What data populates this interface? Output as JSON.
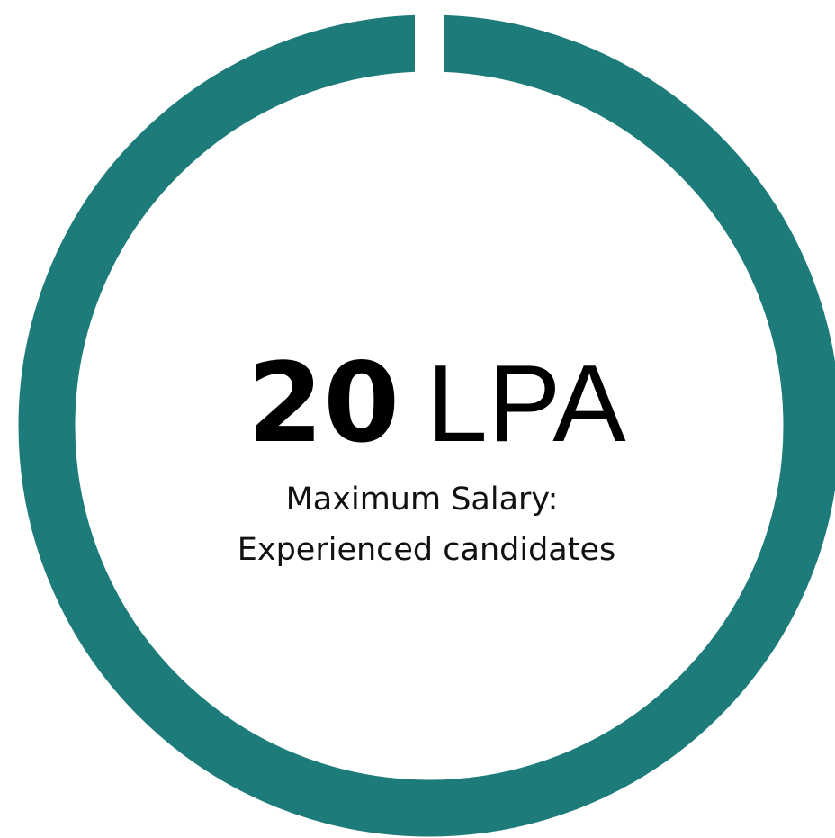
{
  "headline": {
    "number": "20",
    "unit": "LPA"
  },
  "caption": [
    "Maximum Salary:",
    "Experienced candidates"
  ]
}
